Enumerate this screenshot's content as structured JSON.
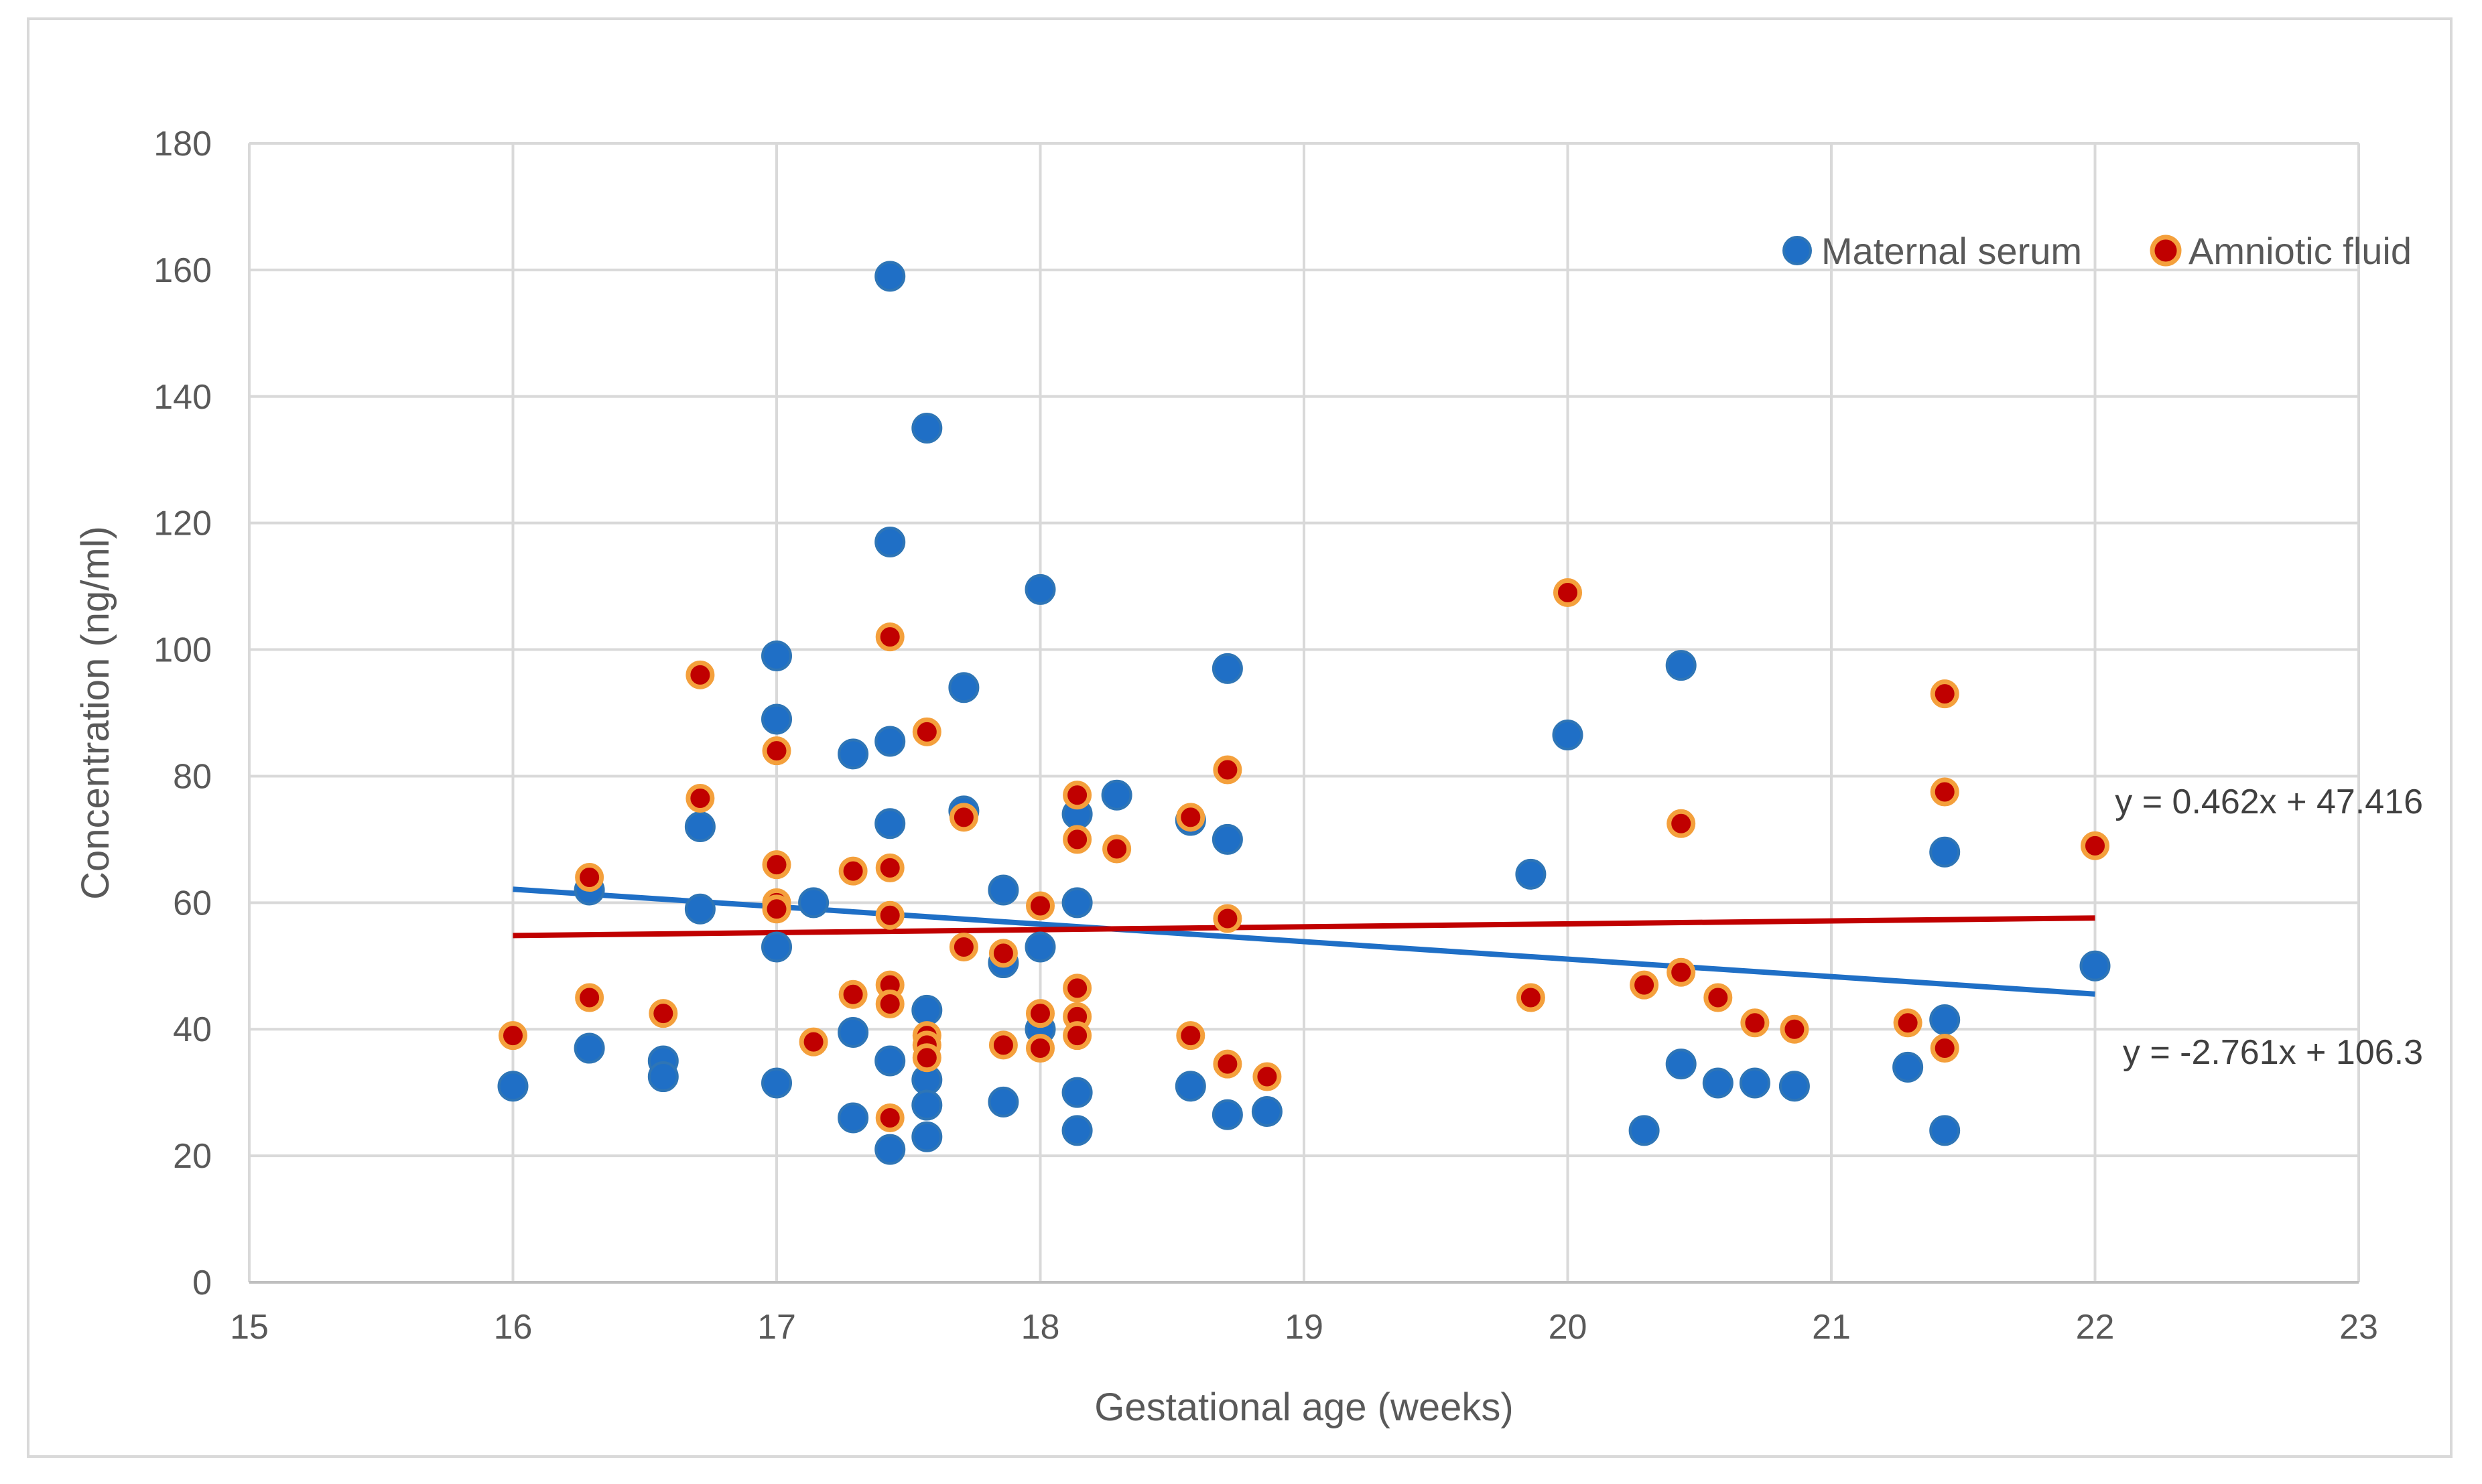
{
  "chart_data": {
    "type": "scatter",
    "title": "",
    "xlabel": "Gestational age (weeks)",
    "ylabel": "Concentration (ng/ml)",
    "xlim": [
      15,
      23
    ],
    "ylim": [
      0,
      180
    ],
    "xticks": [
      15,
      16,
      17,
      18,
      19,
      20,
      21,
      22,
      23
    ],
    "yticks": [
      0,
      20,
      40,
      60,
      80,
      100,
      120,
      140,
      160,
      180
    ],
    "grid": true,
    "legend_position": "top-right",
    "series": [
      {
        "name": "Maternal serum",
        "color": "#1f6fc6",
        "points": [
          [
            16,
            31
          ],
          [
            16.29,
            62
          ],
          [
            16.29,
            37
          ],
          [
            16.57,
            35
          ],
          [
            16.57,
            32.5
          ],
          [
            16.71,
            72
          ],
          [
            16.71,
            59
          ],
          [
            17,
            99
          ],
          [
            17,
            89
          ],
          [
            17,
            53
          ],
          [
            17,
            31.5
          ],
          [
            17.14,
            60
          ],
          [
            17.29,
            83.5
          ],
          [
            17.29,
            39.5
          ],
          [
            17.29,
            26
          ],
          [
            17.43,
            159
          ],
          [
            17.43,
            117
          ],
          [
            17.43,
            85.5
          ],
          [
            17.43,
            72.5
          ],
          [
            17.43,
            35
          ],
          [
            17.43,
            21
          ],
          [
            17.57,
            135
          ],
          [
            17.57,
            43
          ],
          [
            17.57,
            32
          ],
          [
            17.57,
            28
          ],
          [
            17.57,
            23
          ],
          [
            17.71,
            94
          ],
          [
            17.71,
            74.5
          ],
          [
            17.86,
            62
          ],
          [
            17.86,
            50.5
          ],
          [
            17.86,
            28.5
          ],
          [
            18,
            109.5
          ],
          [
            18,
            53
          ],
          [
            18,
            40
          ],
          [
            18.14,
            74
          ],
          [
            18.14,
            60
          ],
          [
            18.14,
            30
          ],
          [
            18.14,
            24
          ],
          [
            18.29,
            77
          ],
          [
            18.57,
            73
          ],
          [
            18.57,
            31
          ],
          [
            18.71,
            97
          ],
          [
            18.71,
            70
          ],
          [
            18.71,
            26.5
          ],
          [
            18.86,
            27
          ],
          [
            19.86,
            64.5
          ],
          [
            20,
            86.5
          ],
          [
            20.29,
            24
          ],
          [
            20.43,
            97.5
          ],
          [
            20.43,
            34.5
          ],
          [
            20.57,
            31.5
          ],
          [
            20.71,
            31.5
          ],
          [
            20.86,
            31
          ],
          [
            21.29,
            34
          ],
          [
            21.43,
            68
          ],
          [
            21.43,
            41.5
          ],
          [
            21.43,
            24
          ],
          [
            22,
            50
          ]
        ],
        "trendline": {
          "slope": -2.761,
          "intercept": 106.3,
          "x_range": [
            16,
            22
          ],
          "equation": "y = -2.761x + 106.3"
        }
      },
      {
        "name": "Amniotic fluid",
        "color": "#c00000",
        "points": [
          [
            16,
            39
          ],
          [
            16.29,
            64
          ],
          [
            16.29,
            45
          ],
          [
            16.57,
            42.5
          ],
          [
            16.71,
            96
          ],
          [
            16.71,
            76.5
          ],
          [
            17,
            84
          ],
          [
            17,
            66
          ],
          [
            17,
            60
          ],
          [
            17,
            59
          ],
          [
            17.14,
            38
          ],
          [
            17.29,
            65
          ],
          [
            17.29,
            45.5
          ],
          [
            17.43,
            102
          ],
          [
            17.43,
            65.5
          ],
          [
            17.43,
            58
          ],
          [
            17.43,
            47
          ],
          [
            17.43,
            44
          ],
          [
            17.43,
            26
          ],
          [
            17.57,
            87
          ],
          [
            17.57,
            39
          ],
          [
            17.57,
            37.5
          ],
          [
            17.57,
            35.5
          ],
          [
            17.71,
            73.5
          ],
          [
            17.71,
            53
          ],
          [
            17.86,
            52
          ],
          [
            17.86,
            37.5
          ],
          [
            18,
            59.5
          ],
          [
            18,
            42.5
          ],
          [
            18,
            37
          ],
          [
            18.14,
            77
          ],
          [
            18.14,
            70
          ],
          [
            18.14,
            46.5
          ],
          [
            18.14,
            42
          ],
          [
            18.14,
            39
          ],
          [
            18.29,
            68.5
          ],
          [
            18.57,
            73.5
          ],
          [
            18.57,
            39
          ],
          [
            18.71,
            81
          ],
          [
            18.71,
            57.5
          ],
          [
            18.71,
            34.5
          ],
          [
            18.86,
            32.5
          ],
          [
            19.86,
            45
          ],
          [
            20,
            109
          ],
          [
            20.29,
            47
          ],
          [
            20.43,
            72.5
          ],
          [
            20.43,
            49
          ],
          [
            20.57,
            45
          ],
          [
            20.71,
            41
          ],
          [
            20.86,
            40
          ],
          [
            21.29,
            41
          ],
          [
            21.43,
            93
          ],
          [
            21.43,
            77.5
          ],
          [
            21.43,
            37
          ],
          [
            22,
            69
          ]
        ],
        "trendline": {
          "slope": 0.462,
          "intercept": 47.416,
          "x_range": [
            16,
            22
          ],
          "equation": "y = 0.462x + 47.416"
        }
      }
    ]
  }
}
